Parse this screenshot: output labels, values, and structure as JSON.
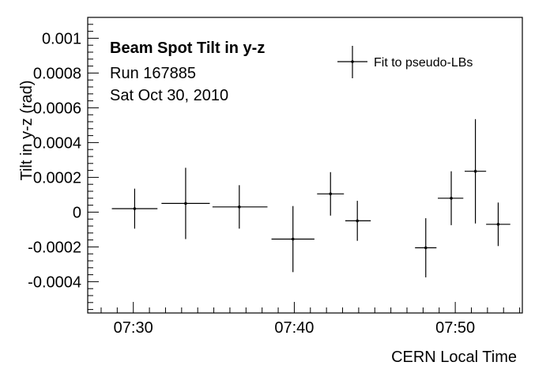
{
  "chart_data": {
    "type": "scatter",
    "title": "Beam Spot Tilt in y-z",
    "annotations": [
      "Run 167885",
      "Sat Oct 30, 2010"
    ],
    "xlabel": "CERN Local Time",
    "ylabel": "Tilt in y-z (rad)",
    "xlim": [
      "07:27:10",
      "07:54:10"
    ],
    "ylim": [
      -0.00058,
      0.00112
    ],
    "x_ticks": [
      "07:30",
      "07:40",
      "07:50"
    ],
    "y_ticks": [
      {
        "value": 0.001,
        "label": "0.001"
      },
      {
        "value": 0.0008,
        "label": "0.0008"
      },
      {
        "value": 0.0006,
        "label": "0.0006"
      },
      {
        "value": 0.0004,
        "label": "0.0004"
      },
      {
        "value": 0.0002,
        "label": "0.0002"
      },
      {
        "value": 0,
        "label": "0"
      },
      {
        "value": -0.0002,
        "label": "-0.0002"
      },
      {
        "value": -0.0004,
        "label": "-0.0004"
      }
    ],
    "legend": {
      "position": "top-right",
      "entries": [
        "Fit to pseudo-LBs"
      ]
    },
    "grid": false,
    "series": [
      {
        "name": "Fit to pseudo-LBs",
        "marker_color": "#000000",
        "points": [
          {
            "x": "07:30:05",
            "x_lo": "07:28:40",
            "x_hi": "07:31:30",
            "y": 2e-05,
            "y_err": 0.000115
          },
          {
            "x": "07:33:15",
            "x_lo": "07:31:45",
            "x_hi": "07:34:45",
            "y": 5e-05,
            "y_err": 0.000205
          },
          {
            "x": "07:36:35",
            "x_lo": "07:34:55",
            "x_hi": "07:38:20",
            "y": 3e-05,
            "y_err": 0.000125
          },
          {
            "x": "07:39:55",
            "x_lo": "07:38:35",
            "x_hi": "07:41:15",
            "y": -0.000155,
            "y_err": 0.00019
          },
          {
            "x": "07:42:15",
            "x_lo": "07:41:25",
            "x_hi": "07:43:05",
            "y": 0.000105,
            "y_err": 0.000125
          },
          {
            "x": "07:43:55",
            "x_lo": "07:43:10",
            "x_hi": "07:44:45",
            "y": -5e-05,
            "y_err": 0.000115
          },
          {
            "x": "07:48:10",
            "x_lo": "07:47:30",
            "x_hi": "07:48:50",
            "y": -0.000205,
            "y_err": 0.00017
          },
          {
            "x": "07:49:45",
            "x_lo": "07:48:55",
            "x_hi": "07:50:30",
            "y": 8e-05,
            "y_err": 0.000155
          },
          {
            "x": "07:51:15",
            "x_lo": "07:50:35",
            "x_hi": "07:51:55",
            "y": 0.000235,
            "y_err": 0.0003
          },
          {
            "x": "07:52:40",
            "x_lo": "07:51:55",
            "x_hi": "07:53:25",
            "y": -7e-05,
            "y_err": 0.000125
          }
        ]
      }
    ]
  }
}
